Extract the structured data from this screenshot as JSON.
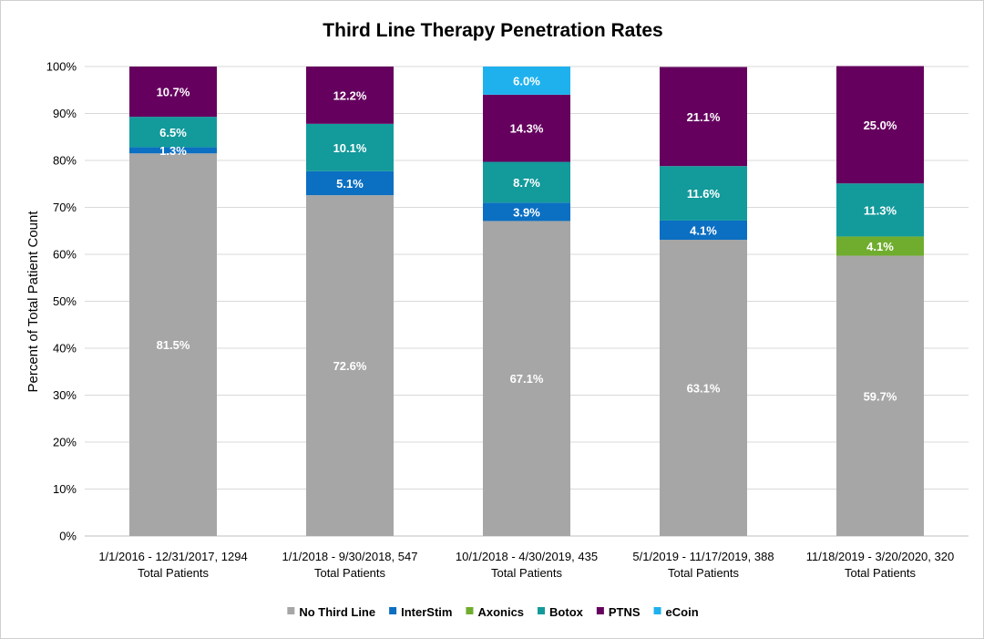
{
  "chart_data": {
    "type": "bar",
    "stacked": true,
    "title": "Third Line Therapy Penetration Rates",
    "xlabel": "",
    "ylabel": "Percent of Total Patient Count",
    "ylim": [
      0,
      100
    ],
    "ytick_labels": [
      "0%",
      "10%",
      "20%",
      "30%",
      "40%",
      "50%",
      "60%",
      "70%",
      "80%",
      "90%",
      "100%"
    ],
    "grid": true,
    "legend_position": "bottom",
    "categories": [
      [
        "1/1/2016 - 12/31/2017, 1294",
        "Total Patients"
      ],
      [
        "1/1/2018 - 9/30/2018, 547",
        "Total Patients"
      ],
      [
        "10/1/2018 - 4/30/2019, 435",
        "Total Patients"
      ],
      [
        "5/1/2019 - 11/17/2019, 388",
        "Total Patients"
      ],
      [
        "11/18/2019 - 3/20/2020, 320",
        "Total Patients"
      ]
    ],
    "series": [
      {
        "name": "No Third Line",
        "color": "#a6a6a6",
        "values": [
          81.5,
          72.6,
          67.1,
          63.1,
          59.7
        ],
        "labels": [
          "81.5%",
          "72.6%",
          "67.1%",
          "63.1%",
          "59.7%"
        ]
      },
      {
        "name": "InterStim",
        "color": "#0b6fc2",
        "values": [
          1.3,
          5.1,
          3.9,
          4.1,
          0
        ],
        "labels": [
          "1.3%",
          "5.1%",
          "3.9%",
          "4.1%",
          ""
        ]
      },
      {
        "name": "Axonics",
        "color": "#70ad2f",
        "values": [
          0,
          0,
          0,
          0,
          4.1
        ],
        "labels": [
          "",
          "",
          "",
          "",
          "4.1%"
        ]
      },
      {
        "name": "Botox",
        "color": "#139a9b",
        "values": [
          6.5,
          10.1,
          8.7,
          11.6,
          11.3
        ],
        "labels": [
          "6.5%",
          "10.1%",
          "8.7%",
          "11.6%",
          "11.3%"
        ]
      },
      {
        "name": "PTNS",
        "color": "#65005e",
        "values": [
          10.7,
          12.2,
          14.3,
          21.1,
          25.0
        ],
        "labels": [
          "10.7%",
          "12.2%",
          "14.3%",
          "21.1%",
          "25.0%"
        ]
      },
      {
        "name": "eCoin",
        "color": "#1fb1ee",
        "values": [
          0,
          0,
          6.0,
          0,
          0
        ],
        "labels": [
          "",
          "",
          "6.0%",
          "",
          ""
        ]
      }
    ]
  }
}
